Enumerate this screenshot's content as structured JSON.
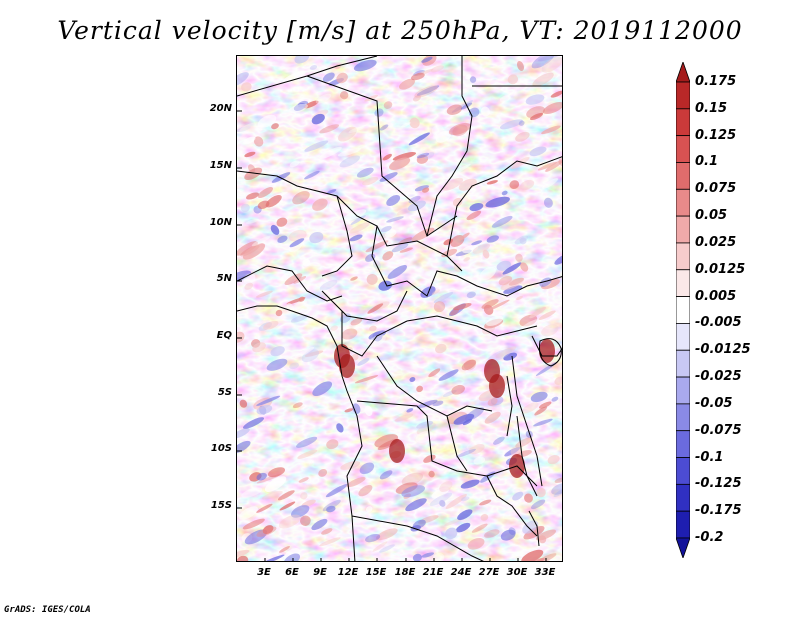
{
  "title": "Vertical velocity [m/s] at 250hPa, VT: 2019112000",
  "lat_labels": [
    "20N",
    "15N",
    "10N",
    "5N",
    "EQ",
    "5S",
    "10S",
    "15S"
  ],
  "lon_labels": [
    "3E",
    "6E",
    "9E",
    "12E",
    "15E",
    "18E",
    "21E",
    "24E",
    "27E",
    "30E",
    "33E"
  ],
  "colorbar": {
    "labels": [
      "0.175",
      "0.15",
      "0.125",
      "0.1",
      "0.075",
      "0.05",
      "0.025",
      "0.0125",
      "0.005",
      "-0.005",
      "-0.0125",
      "-0.025",
      "-0.05",
      "-0.075",
      "-0.1",
      "-0.125",
      "-0.175",
      "-0.2"
    ],
    "colors": [
      "#a51c1c",
      "#b92828",
      "#cb3a3a",
      "#d85252",
      "#e06c6c",
      "#e88a8a",
      "#f0aaaa",
      "#f7cccc",
      "#fbe8e8",
      "#ffffff",
      "#e6e6fb",
      "#c8c8f4",
      "#a9a9ee",
      "#8a8ae6",
      "#6b6bde",
      "#4c4cd3",
      "#3030c2",
      "#1e1eb0",
      "#12129a"
    ]
  },
  "credit": "GrADS: IGES/COLA"
}
